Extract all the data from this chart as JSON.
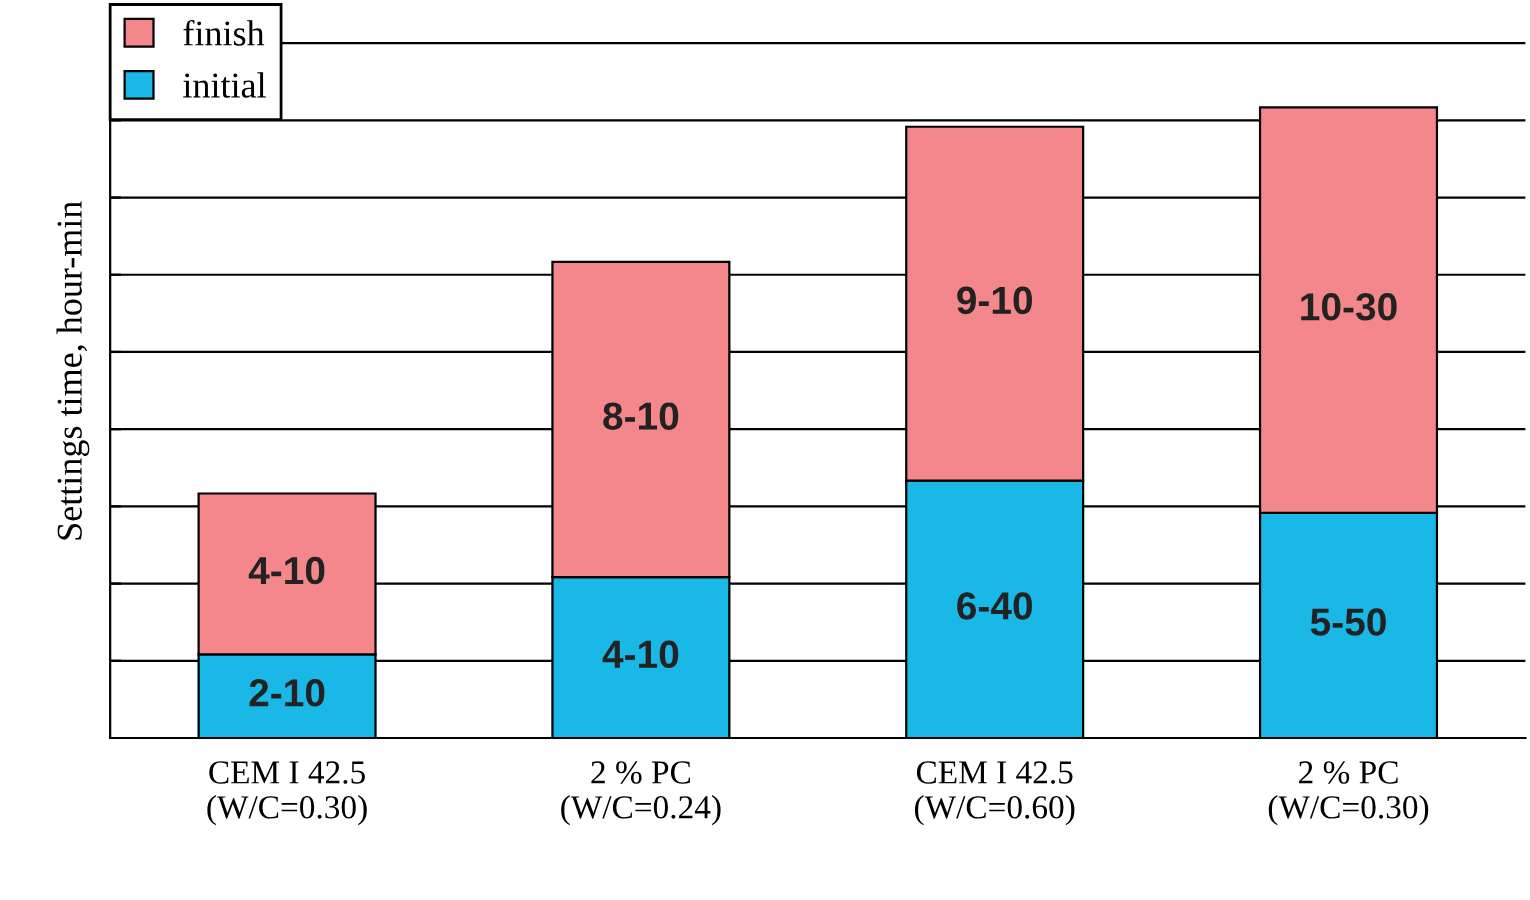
{
  "chart_data": {
    "type": "bar",
    "stacked": true,
    "ylabel": "Settings time, hour-min",
    "categories": [
      "CEM I 42.5\n(W/C=0.30)",
      "2 % PC\n(W/C=0.24)",
      "CEM I 42.5\n(W/C=0.60)",
      "2 % PC\n(W/C=0.30)"
    ],
    "series": [
      {
        "name": "initial",
        "color": "#1ab8e6",
        "values": [
          2.1667,
          4.1667,
          6.6667,
          5.8333
        ],
        "value_labels": [
          "2-10",
          "4-10",
          "6-40",
          "5-50"
        ]
      },
      {
        "name": "finish",
        "color": "#f4878b",
        "values": [
          4.1667,
          8.1667,
          9.1667,
          10.5
        ],
        "value_labels": [
          "4-10",
          "8-10",
          "9-10",
          "10-30"
        ]
      }
    ],
    "ylim": [
      0,
      19
    ],
    "yticks": [
      {
        "value": 2,
        "label": null
      },
      {
        "value": 4,
        "label": null
      },
      {
        "value": 6,
        "label": null
      },
      {
        "value": 8,
        "label": null
      },
      {
        "value": 10,
        "label": null
      },
      {
        "value": 12,
        "label": null
      },
      {
        "value": 14,
        "label": null
      },
      {
        "value": 16,
        "label": null
      },
      {
        "value": 18,
        "label": null
      }
    ],
    "grid": "y",
    "legend": "top left"
  }
}
